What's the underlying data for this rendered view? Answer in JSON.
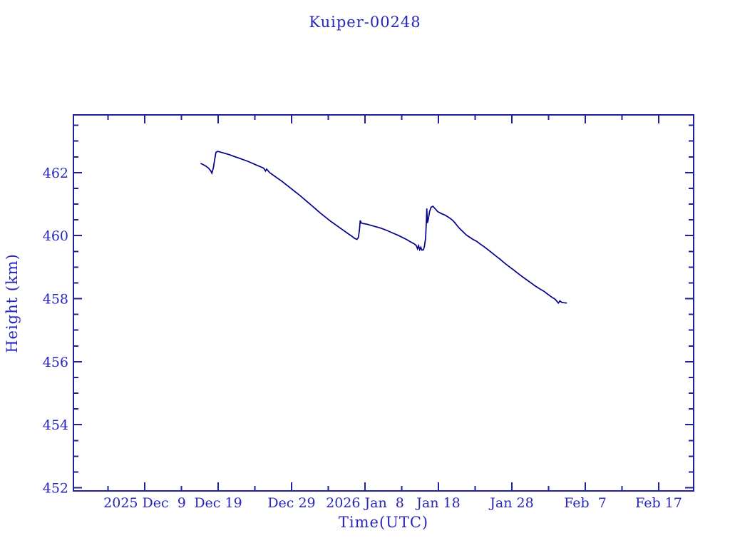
{
  "page": {
    "background": "#ffffff"
  },
  "chart_data": {
    "type": "line",
    "title": "Kuiper-00248",
    "xlabel": "Time(UTC)",
    "ylabel": "Height (km)",
    "x_unit": "days since 2025 Dec 9 00:00 UTC",
    "xlim": [
      -9.71,
      74.76
    ],
    "ylim": [
      451.9,
      463.83
    ],
    "grid": false,
    "legend_position": "none",
    "x_major_ticks": [
      {
        "value": 0,
        "label": "2025 Dec  9"
      },
      {
        "value": 10,
        "label": "Dec 19"
      },
      {
        "value": 20,
        "label": "Dec 29"
      },
      {
        "value": 30,
        "label": "2026 Jan  8"
      },
      {
        "value": 40,
        "label": "Jan 18"
      },
      {
        "value": 50,
        "label": "Jan 28"
      },
      {
        "value": 60,
        "label": "Feb  7"
      },
      {
        "value": 70,
        "label": "Feb 17"
      }
    ],
    "x_minor_step": 5,
    "y_major_ticks": [
      {
        "value": 452,
        "label": "452"
      },
      {
        "value": 454,
        "label": "454"
      },
      {
        "value": 456,
        "label": "456"
      },
      {
        "value": 458,
        "label": "458"
      },
      {
        "value": 460,
        "label": "460"
      },
      {
        "value": 462,
        "label": "462"
      }
    ],
    "y_minor_step": 0.5,
    "colors": {
      "line": "#00008b",
      "frame": "#20209a",
      "text": "#2626bb",
      "background": "#ffffff"
    },
    "series": [
      {
        "name": "Kuiper-00248 height",
        "points": [
          [
            7.6,
            462.29
          ],
          [
            7.9,
            462.26
          ],
          [
            8.3,
            462.21
          ],
          [
            8.7,
            462.14
          ],
          [
            9.0,
            462.05
          ],
          [
            9.15,
            461.98
          ],
          [
            9.35,
            462.15
          ],
          [
            9.55,
            462.45
          ],
          [
            9.7,
            462.64
          ],
          [
            9.9,
            462.67
          ],
          [
            10.3,
            462.65
          ],
          [
            10.9,
            462.61
          ],
          [
            11.5,
            462.57
          ],
          [
            12.1,
            462.52
          ],
          [
            12.7,
            462.47
          ],
          [
            13.3,
            462.42
          ],
          [
            13.9,
            462.37
          ],
          [
            14.5,
            462.31
          ],
          [
            15.1,
            462.25
          ],
          [
            15.7,
            462.19
          ],
          [
            16.2,
            462.14
          ],
          [
            16.45,
            462.05
          ],
          [
            16.6,
            462.11
          ],
          [
            17.0,
            462.0
          ],
          [
            17.5,
            461.92
          ],
          [
            18.1,
            461.82
          ],
          [
            18.7,
            461.72
          ],
          [
            19.3,
            461.61
          ],
          [
            19.9,
            461.5
          ],
          [
            20.5,
            461.39
          ],
          [
            21.1,
            461.28
          ],
          [
            21.7,
            461.16
          ],
          [
            22.3,
            461.04
          ],
          [
            22.9,
            460.92
          ],
          [
            23.5,
            460.8
          ],
          [
            24.1,
            460.68
          ],
          [
            24.7,
            460.57
          ],
          [
            25.3,
            460.46
          ],
          [
            25.9,
            460.36
          ],
          [
            26.5,
            460.26
          ],
          [
            27.1,
            460.16
          ],
          [
            27.7,
            460.06
          ],
          [
            28.2,
            459.98
          ],
          [
            28.6,
            459.91
          ],
          [
            28.9,
            459.88
          ],
          [
            29.1,
            459.94
          ],
          [
            29.25,
            460.2
          ],
          [
            29.35,
            460.48
          ],
          [
            29.5,
            460.4
          ],
          [
            29.8,
            460.38
          ],
          [
            30.3,
            460.36
          ],
          [
            30.9,
            460.32
          ],
          [
            31.5,
            460.28
          ],
          [
            32.1,
            460.24
          ],
          [
            32.7,
            460.19
          ],
          [
            33.3,
            460.13
          ],
          [
            33.9,
            460.07
          ],
          [
            34.5,
            460.01
          ],
          [
            35.1,
            459.94
          ],
          [
            35.7,
            459.87
          ],
          [
            36.2,
            459.8
          ],
          [
            36.7,
            459.74
          ],
          [
            37.0,
            459.68
          ],
          [
            37.15,
            459.58
          ],
          [
            37.3,
            459.68
          ],
          [
            37.45,
            459.55
          ],
          [
            37.6,
            459.63
          ],
          [
            37.75,
            459.54
          ],
          [
            37.95,
            459.55
          ],
          [
            38.1,
            459.66
          ],
          [
            38.25,
            459.92
          ],
          [
            38.35,
            460.4
          ],
          [
            38.42,
            460.86
          ],
          [
            38.5,
            460.4
          ],
          [
            38.62,
            460.52
          ],
          [
            38.8,
            460.76
          ],
          [
            39.0,
            460.9
          ],
          [
            39.25,
            460.93
          ],
          [
            39.6,
            460.84
          ],
          [
            39.9,
            460.76
          ],
          [
            40.4,
            460.7
          ],
          [
            40.9,
            460.65
          ],
          [
            41.4,
            460.58
          ],
          [
            41.9,
            460.49
          ],
          [
            42.2,
            460.42
          ],
          [
            42.6,
            460.3
          ],
          [
            43.0,
            460.2
          ],
          [
            43.4,
            460.11
          ],
          [
            43.8,
            460.02
          ],
          [
            44.2,
            459.96
          ],
          [
            44.7,
            459.88
          ],
          [
            45.2,
            459.82
          ],
          [
            45.7,
            459.73
          ],
          [
            46.2,
            459.65
          ],
          [
            46.7,
            459.56
          ],
          [
            47.2,
            459.47
          ],
          [
            47.8,
            459.36
          ],
          [
            48.4,
            459.25
          ],
          [
            49.0,
            459.13
          ],
          [
            49.6,
            459.02
          ],
          [
            50.2,
            458.92
          ],
          [
            50.8,
            458.81
          ],
          [
            51.4,
            458.7
          ],
          [
            52.0,
            458.6
          ],
          [
            52.6,
            458.5
          ],
          [
            53.2,
            458.4
          ],
          [
            53.8,
            458.31
          ],
          [
            54.4,
            458.23
          ],
          [
            55.0,
            458.12
          ],
          [
            55.5,
            458.04
          ],
          [
            55.9,
            457.98
          ],
          [
            56.2,
            457.9
          ],
          [
            56.35,
            457.86
          ],
          [
            56.55,
            457.93
          ],
          [
            56.8,
            457.88
          ],
          [
            57.1,
            457.87
          ],
          [
            57.5,
            457.86
          ]
        ]
      }
    ]
  }
}
